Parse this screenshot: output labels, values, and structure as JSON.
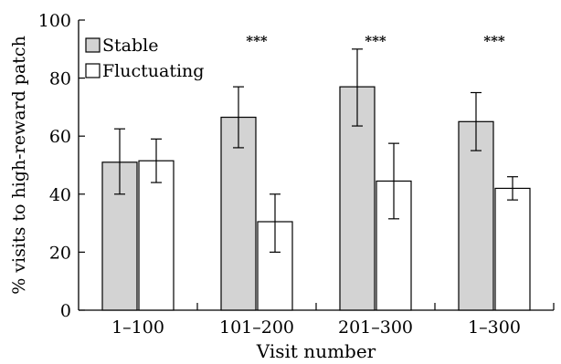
{
  "chart_data": {
    "type": "bar",
    "categories": [
      "1–100",
      "101–200",
      "201–300",
      "1–300"
    ],
    "series": [
      {
        "name": "Stable",
        "values": [
          51,
          66.5,
          77,
          65
        ],
        "err_low": [
          40,
          56,
          63.5,
          55
        ],
        "err_high": [
          62.5,
          77,
          90,
          75
        ],
        "color": "#d3d3d3"
      },
      {
        "name": "Fluctuating",
        "values": [
          51.5,
          30.5,
          44.5,
          42
        ],
        "err_low": [
          44,
          20,
          31.5,
          38
        ],
        "err_high": [
          59,
          40,
          57.5,
          46
        ],
        "color": "#ffffff"
      }
    ],
    "significance": [
      "",
      "***",
      "***",
      "***"
    ],
    "title": "",
    "xlabel": "Visit number",
    "ylabel": "% visits to high-reward patch",
    "ylim": [
      0,
      100
    ],
    "yticks": [
      0,
      20,
      40,
      60,
      80,
      100
    ],
    "legend_position": "top-left",
    "grid": false
  }
}
